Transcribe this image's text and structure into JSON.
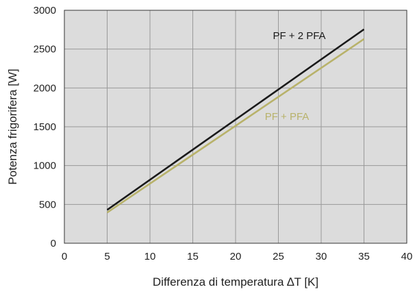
{
  "chart_data": {
    "type": "line",
    "xlabel": "Differenza di temperatura ∆T [K]",
    "ylabel": "Potenza frigorifera [W]",
    "xlim": [
      0,
      40
    ],
    "ylim": [
      0,
      3000
    ],
    "x_ticks": [
      "0",
      "5",
      "10",
      "15",
      "20",
      "25",
      "30",
      "35",
      "40"
    ],
    "y_ticks": [
      "0",
      "500",
      "1000",
      "1500",
      "2000",
      "2500",
      "3000"
    ],
    "grid": true,
    "background_color": "#dcdcdc",
    "series": [
      {
        "name": "PF + 2 PFA",
        "color": "#1a1a1a",
        "x": [
          5,
          35
        ],
        "y": [
          430,
          2755
        ]
      },
      {
        "name": "PF + PFA",
        "color": "#b8b26a",
        "x": [
          5,
          35
        ],
        "y": [
          395,
          2630
        ]
      }
    ]
  }
}
